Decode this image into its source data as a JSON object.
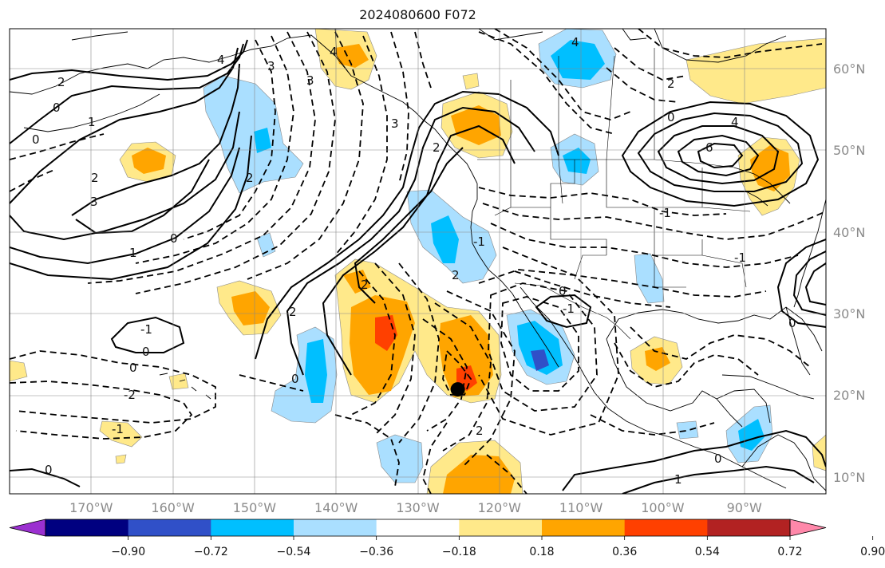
{
  "title": "2024080600 F072",
  "map": {
    "lon_range": [
      -180,
      -80
    ],
    "lat_range": [
      8,
      65
    ],
    "gridlines": true,
    "lat_labels": [
      {
        "lat": 60,
        "text": "60°N"
      },
      {
        "lat": 50,
        "text": "50°N"
      },
      {
        "lat": 40,
        "text": "40°N"
      },
      {
        "lat": 30,
        "text": "30°N"
      },
      {
        "lat": 20,
        "text": "20°N"
      },
      {
        "lat": 10,
        "text": "10°N"
      }
    ],
    "lon_labels": [
      {
        "lon": -170,
        "text": "170°W"
      },
      {
        "lon": -160,
        "text": "160°W"
      },
      {
        "lon": -150,
        "text": "150°W"
      },
      {
        "lon": -140,
        "text": "140°W"
      },
      {
        "lon": -130,
        "text": "130°W"
      },
      {
        "lon": -120,
        "text": "120°W"
      },
      {
        "lon": -110,
        "text": "110°W"
      },
      {
        "lon": -100,
        "text": "100°W"
      },
      {
        "lon": -90,
        "text": "90°W"
      }
    ],
    "marker": {
      "name": "black-dot",
      "lon": -125.1,
      "lat": 20.8
    }
  },
  "contour_labels": [
    "2",
    "0",
    "1",
    "2",
    "3",
    "4",
    "3",
    "4",
    "0",
    "1",
    "3",
    "0",
    "2",
    "3",
    "2",
    "-1",
    "0",
    "0",
    "-2",
    "-1",
    "0",
    "2",
    "2",
    "0",
    "2",
    "-1",
    "0",
    "-1",
    "0",
    "1",
    "-1",
    "0",
    "4",
    "6",
    "2",
    "-1",
    "0",
    "4",
    "2"
  ],
  "colorbar": {
    "colors": [
      "#9b30d0",
      "#000080",
      "#3050c8",
      "#00bfff",
      "#aadfff",
      "#ffffff",
      "#ffe98a",
      "#ffa500",
      "#ff4000",
      "#b22222",
      "#ff88aa"
    ],
    "extend": "both",
    "labels": [
      "−0.90",
      "−0.72",
      "−0.54",
      "−0.36",
      "−0.18",
      "0.18",
      "0.36",
      "0.54",
      "0.72",
      "0.90"
    ]
  },
  "colors": {
    "positive_contour": "#000000",
    "negative_contour": "#000000",
    "grid": "#888888",
    "tick_label": "#8a8a8a",
    "coast": "#000000"
  }
}
